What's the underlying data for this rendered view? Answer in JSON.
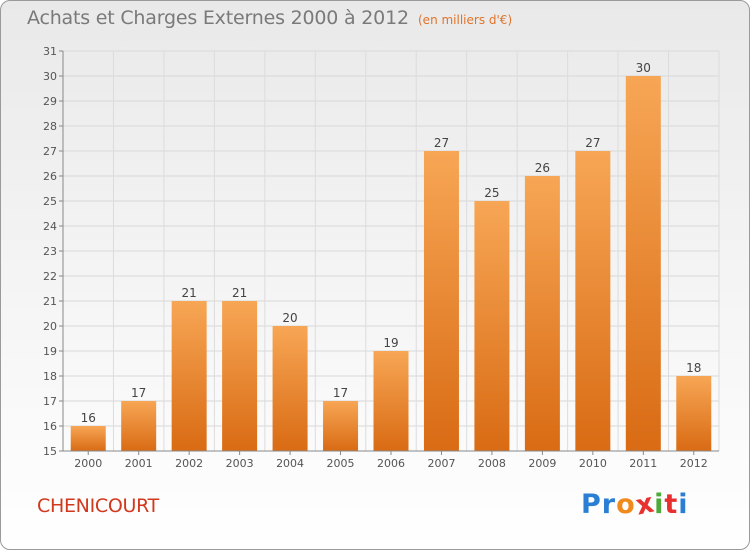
{
  "chart_data": {
    "type": "bar",
    "title": "Achats et Charges Externes 2000 à 2012",
    "subtitle": "(en milliers d'€)",
    "categories": [
      "2000",
      "2001",
      "2002",
      "2003",
      "2004",
      "2005",
      "2006",
      "2007",
      "2008",
      "2009",
      "2010",
      "2011",
      "2012"
    ],
    "values": [
      16,
      17,
      21,
      21,
      20,
      17,
      19,
      27,
      25,
      26,
      27,
      30,
      18
    ],
    "xlabel": "",
    "ylabel": "",
    "ylim": [
      15,
      31
    ],
    "yticks": [
      15,
      16,
      17,
      18,
      19,
      20,
      21,
      22,
      23,
      24,
      25,
      26,
      27,
      28,
      29,
      30,
      31
    ],
    "grid": true,
    "bar_color": "#f0872e"
  },
  "footer": {
    "location": "CHENICOURT"
  },
  "logo": {
    "letters": [
      "P",
      "r",
      "o",
      "x",
      "i",
      "t",
      "i"
    ],
    "colors": [
      "#2a7fd4",
      "#2a7fd4",
      "#f08a1c",
      "#e8312e",
      "#4caa3a",
      "#e8312e",
      "#2a7fd4"
    ]
  }
}
